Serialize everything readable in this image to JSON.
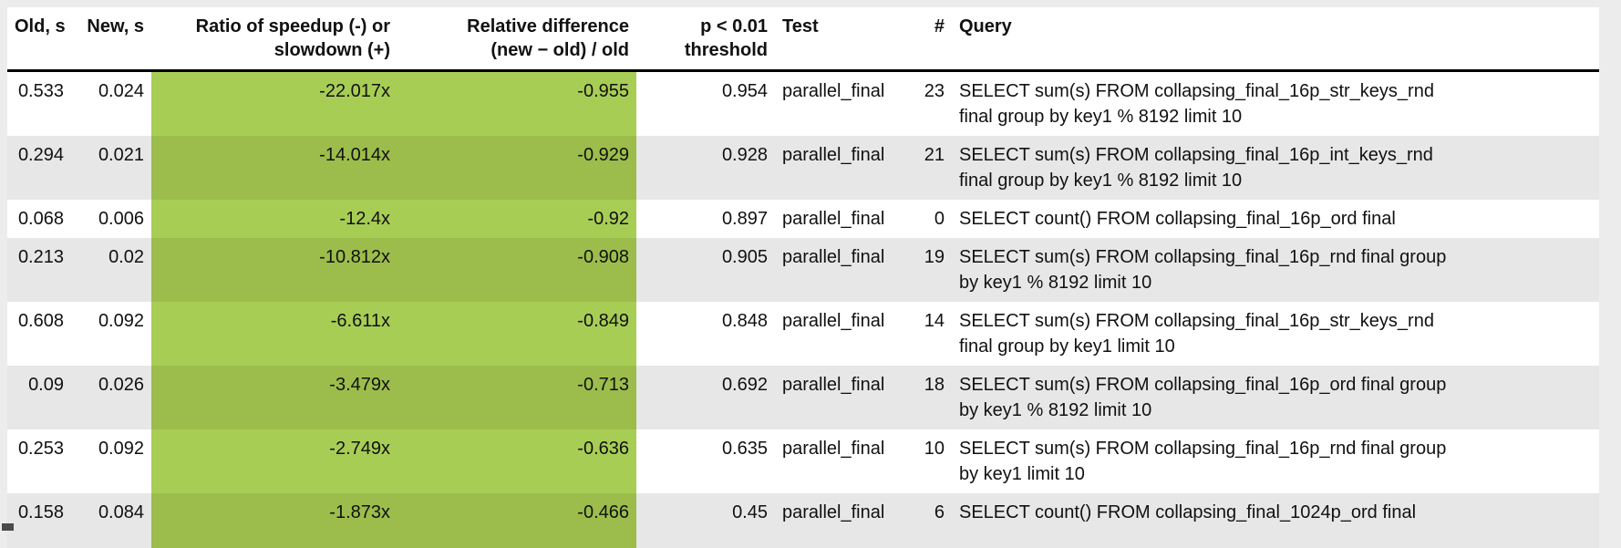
{
  "page": {
    "background": "#ececec"
  },
  "table": {
    "colors": {
      "highlight_green_on_white_row": "#a8cd55",
      "highlight_green_on_gray_row": "#9cbd4b",
      "row_stripe": "#e7e7e7",
      "header_rule": "#000000"
    },
    "headers": {
      "old": {
        "line1": "Old, s",
        "line2": ""
      },
      "new": {
        "line1": "New, s",
        "line2": ""
      },
      "ratio": {
        "line1": "Ratio of speedup (-) or",
        "line2": "slowdown (+)"
      },
      "reldiff": {
        "line1": "Relative difference",
        "line2": "(new − old) / old"
      },
      "p": {
        "line1": "p < 0.01",
        "line2": "threshold"
      },
      "test": {
        "line1": "Test",
        "line2": ""
      },
      "num": {
        "line1": "#",
        "line2": ""
      },
      "query": {
        "line1": "Query",
        "line2": ""
      }
    },
    "rows": [
      {
        "old": "0.533",
        "new": "0.024",
        "ratio": "-22.017x",
        "reldiff": "-0.955",
        "p": "0.954",
        "test": "parallel_final",
        "num": "23",
        "query_line1": "SELECT sum(s) FROM collapsing_final_16p_str_keys_rnd",
        "query_line2": "final group by key1 % 8192 limit 10"
      },
      {
        "old": "0.294",
        "new": "0.021",
        "ratio": "-14.014x",
        "reldiff": "-0.929",
        "p": "0.928",
        "test": "parallel_final",
        "num": "21",
        "query_line1": "SELECT sum(s) FROM collapsing_final_16p_int_keys_rnd",
        "query_line2": "final group by key1 % 8192 limit 10"
      },
      {
        "old": "0.068",
        "new": "0.006",
        "ratio": "-12.4x",
        "reldiff": "-0.92",
        "p": "0.897",
        "test": "parallel_final",
        "num": "0",
        "query_line1": "SELECT count() FROM collapsing_final_16p_ord final",
        "query_line2": ""
      },
      {
        "old": "0.213",
        "new": "0.02",
        "ratio": "-10.812x",
        "reldiff": "-0.908",
        "p": "0.905",
        "test": "parallel_final",
        "num": "19",
        "query_line1": "SELECT sum(s) FROM collapsing_final_16p_rnd final group",
        "query_line2": "by key1 % 8192 limit 10"
      },
      {
        "old": "0.608",
        "new": "0.092",
        "ratio": "-6.611x",
        "reldiff": "-0.849",
        "p": "0.848",
        "test": "parallel_final",
        "num": "14",
        "query_line1": "SELECT sum(s) FROM collapsing_final_16p_str_keys_rnd",
        "query_line2": "final group by key1 limit 10"
      },
      {
        "old": "0.09",
        "new": "0.026",
        "ratio": "-3.479x",
        "reldiff": "-0.713",
        "p": "0.692",
        "test": "parallel_final",
        "num": "18",
        "query_line1": "SELECT sum(s) FROM collapsing_final_16p_ord final group",
        "query_line2": "by key1 % 8192 limit 10"
      },
      {
        "old": "0.253",
        "new": "0.092",
        "ratio": "-2.749x",
        "reldiff": "-0.636",
        "p": "0.635",
        "test": "parallel_final",
        "num": "10",
        "query_line1": "SELECT sum(s) FROM collapsing_final_16p_rnd final group",
        "query_line2": "by key1 limit 10"
      },
      {
        "old": "0.158",
        "new": "0.084",
        "ratio": "-1.873x",
        "reldiff": "-0.466",
        "p": "0.45",
        "test": "parallel_final",
        "num": "6",
        "query_line1": "SELECT count() FROM collapsing_final_1024p_ord final",
        "query_line2": ""
      }
    ]
  }
}
